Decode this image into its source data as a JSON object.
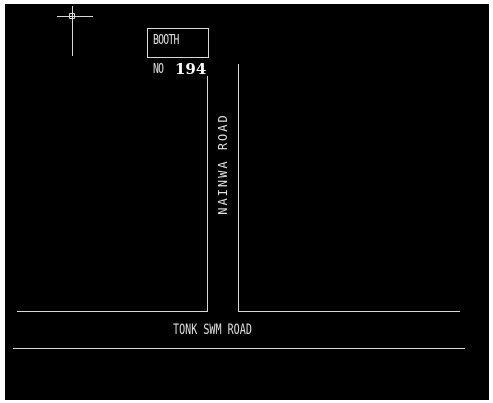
{
  "map": {
    "background": "#000000",
    "line_color": "#d8d8d8",
    "cursor": {
      "icon": "crosshair-icon"
    },
    "booth": {
      "label": "BOOTH",
      "number_prefix": "NO",
      "number": "194"
    },
    "roads": {
      "vertical": {
        "name": "NAINWA ROAD"
      },
      "horizontal": {
        "name": "TONK SWM ROAD"
      }
    }
  }
}
